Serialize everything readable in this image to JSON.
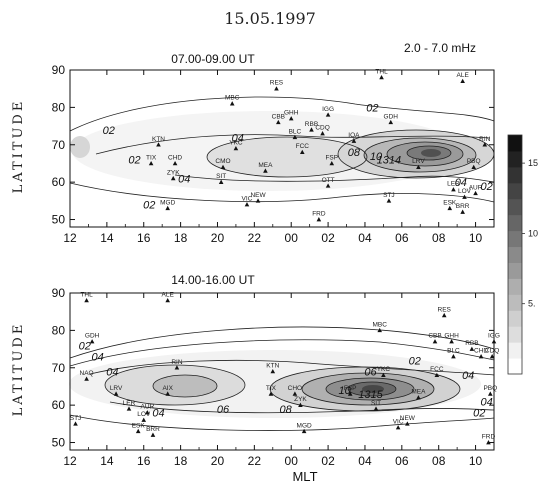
{
  "figure": {
    "date": "15.05.1997",
    "xlabel": "MLT",
    "ylabel": "LATITUDE",
    "band": "2.0 - 7.0 mHz"
  },
  "colorbar": {
    "ticks": [
      {
        "value": 15,
        "label": "15"
      },
      {
        "value": 10,
        "label": "10"
      },
      {
        "value": 5,
        "label": "5."
      }
    ],
    "range": [
      0,
      17
    ],
    "levels": [
      "#ffffff",
      "#f1f1f1",
      "#dddddd",
      "#cfcfcf",
      "#bcbcbc",
      "#aeaeae",
      "#9a9a9a",
      "#8a8a8a",
      "#777777",
      "#666666",
      "#545454",
      "#444444",
      "#333333",
      "#222222",
      "#111111"
    ]
  },
  "chart_data": [
    {
      "type": "contour",
      "title": "07.00-09.00 UT",
      "xlabel": "",
      "ylabel": "LATITUDE",
      "xticks": [
        "12",
        "14",
        "16",
        "18",
        "20",
        "22",
        "00",
        "02",
        "04",
        "06",
        "08",
        "10"
      ],
      "yticks": [
        "50",
        "60",
        "70",
        "80",
        "90"
      ],
      "xlim": [
        12,
        35
      ],
      "ylim": [
        48,
        90
      ],
      "stations": [
        {
          "name": "RES",
          "mlt": 23.2,
          "lat": 85
        },
        {
          "name": "THL",
          "mlt": 28.9,
          "lat": 88
        },
        {
          "name": "ALE",
          "mlt": 33.3,
          "lat": 87
        },
        {
          "name": "MBC",
          "mlt": 20.8,
          "lat": 81
        },
        {
          "name": "IGG",
          "mlt": 26.0,
          "lat": 78
        },
        {
          "name": "GHH",
          "mlt": 24.0,
          "lat": 77
        },
        {
          "name": "GDH",
          "mlt": 29.4,
          "lat": 76
        },
        {
          "name": "CBB",
          "mlt": 23.3,
          "lat": 76
        },
        {
          "name": "RBB",
          "mlt": 25.1,
          "lat": 74
        },
        {
          "name": "BLC",
          "mlt": 24.2,
          "lat": 72
        },
        {
          "name": "CDQ",
          "mlt": 25.7,
          "lat": 73
        },
        {
          "name": "IQA",
          "mlt": 27.4,
          "lat": 71
        },
        {
          "name": "RIN",
          "mlt": 34.5,
          "lat": 70
        },
        {
          "name": "KTN",
          "mlt": 16.8,
          "lat": 70
        },
        {
          "name": "YKC",
          "mlt": 21.0,
          "lat": 69
        },
        {
          "name": "FCC",
          "mlt": 24.6,
          "lat": 68
        },
        {
          "name": "FSP",
          "mlt": 26.2,
          "lat": 65
        },
        {
          "name": "LRV",
          "mlt": 30.9,
          "lat": 64
        },
        {
          "name": "TIX",
          "mlt": 16.4,
          "lat": 65
        },
        {
          "name": "CHD",
          "mlt": 17.7,
          "lat": 65
        },
        {
          "name": "CMO",
          "mlt": 20.3,
          "lat": 64
        },
        {
          "name": "MEA",
          "mlt": 22.6,
          "lat": 63
        },
        {
          "name": "PBQ",
          "mlt": 33.9,
          "lat": 64
        },
        {
          "name": "ZYK",
          "mlt": 17.6,
          "lat": 61
        },
        {
          "name": "SIT",
          "mlt": 20.2,
          "lat": 60
        },
        {
          "name": "OTT",
          "mlt": 26.0,
          "lat": 59
        },
        {
          "name": "LER",
          "mlt": 32.8,
          "lat": 58
        },
        {
          "name": "AUR",
          "mlt": 34.0,
          "lat": 57
        },
        {
          "name": "LOV",
          "mlt": 33.4,
          "lat": 56
        },
        {
          "name": "MGD",
          "mlt": 17.3,
          "lat": 53
        },
        {
          "name": "VIC",
          "mlt": 21.6,
          "lat": 54
        },
        {
          "name": "NEW",
          "mlt": 22.2,
          "lat": 55
        },
        {
          "name": "STJ",
          "mlt": 29.3,
          "lat": 55
        },
        {
          "name": "ESK",
          "mlt": 32.6,
          "lat": 53
        },
        {
          "name": "BRR",
          "mlt": 33.3,
          "lat": 52
        },
        {
          "name": "FRD",
          "mlt": 25.5,
          "lat": 50
        }
      ],
      "contour_labels": [
        {
          "text": "02",
          "mlt": 14.1,
          "lat": 74
        },
        {
          "text": "02",
          "mlt": 15.5,
          "lat": 66
        },
        {
          "text": "04",
          "mlt": 18.2,
          "lat": 61
        },
        {
          "text": "02",
          "mlt": 16.3,
          "lat": 54
        },
        {
          "text": "04",
          "mlt": 21.1,
          "lat": 72
        },
        {
          "text": "02",
          "mlt": 28.4,
          "lat": 80
        },
        {
          "text": "08",
          "mlt": 27.4,
          "lat": 68
        },
        {
          "text": "10",
          "mlt": 28.6,
          "lat": 67
        },
        {
          "text": "1314",
          "mlt": 29.3,
          "lat": 66
        },
        {
          "text": "04",
          "mlt": 33.2,
          "lat": 60
        },
        {
          "text": "02",
          "mlt": 34.6,
          "lat": 59
        }
      ]
    },
    {
      "type": "contour",
      "title": "14.00-16.00 UT",
      "xlabel": "MLT",
      "ylabel": "LATITUDE",
      "xticks": [
        "12",
        "14",
        "16",
        "18",
        "20",
        "22",
        "00",
        "02",
        "04",
        "06",
        "08",
        "10"
      ],
      "yticks": [
        "50",
        "60",
        "70",
        "80",
        "90"
      ],
      "xlim": [
        12,
        35
      ],
      "ylim": [
        48,
        90
      ],
      "stations": [
        {
          "name": "THL",
          "mlt": 12.9,
          "lat": 88
        },
        {
          "name": "ALE",
          "mlt": 17.3,
          "lat": 88
        },
        {
          "name": "RES",
          "mlt": 32.3,
          "lat": 84
        },
        {
          "name": "MBC",
          "mlt": 28.8,
          "lat": 80
        },
        {
          "name": "GDH",
          "mlt": 13.2,
          "lat": 77
        },
        {
          "name": "CBB",
          "mlt": 31.8,
          "lat": 77
        },
        {
          "name": "GHH",
          "mlt": 32.7,
          "lat": 77
        },
        {
          "name": "IGG",
          "mlt": 35.0,
          "lat": 77
        },
        {
          "name": "RBB",
          "mlt": 33.8,
          "lat": 75
        },
        {
          "name": "BLC",
          "mlt": 32.8,
          "lat": 73
        },
        {
          "name": "CHD",
          "mlt": 34.3,
          "lat": 73
        },
        {
          "name": "CDQ",
          "mlt": 34.9,
          "lat": 73
        },
        {
          "name": "RIN",
          "mlt": 17.8,
          "lat": 70
        },
        {
          "name": "KTN",
          "mlt": 23.0,
          "lat": 69
        },
        {
          "name": "YKC",
          "mlt": 29.0,
          "lat": 68
        },
        {
          "name": "FCC",
          "mlt": 31.9,
          "lat": 68
        },
        {
          "name": "NAQ",
          "mlt": 12.9,
          "lat": 67
        },
        {
          "name": "LRV",
          "mlt": 14.5,
          "lat": 63
        },
        {
          "name": "AIX",
          "mlt": 17.3,
          "lat": 63
        },
        {
          "name": "TIX",
          "mlt": 22.9,
          "lat": 63
        },
        {
          "name": "CHO",
          "mlt": 24.2,
          "lat": 63
        },
        {
          "name": "FSP",
          "mlt": 27.2,
          "lat": 63
        },
        {
          "name": "MEA",
          "mlt": 30.9,
          "lat": 62
        },
        {
          "name": "PBQ",
          "mlt": 34.8,
          "lat": 63
        },
        {
          "name": "ZYK",
          "mlt": 24.5,
          "lat": 60
        },
        {
          "name": "SIT",
          "mlt": 28.6,
          "lat": 59
        },
        {
          "name": "LER",
          "mlt": 15.2,
          "lat": 59
        },
        {
          "name": "AUR",
          "mlt": 16.2,
          "lat": 58
        },
        {
          "name": "LOV",
          "mlt": 16.0,
          "lat": 56
        },
        {
          "name": "STJ",
          "mlt": 12.3,
          "lat": 55
        },
        {
          "name": "ESK",
          "mlt": 15.7,
          "lat": 53
        },
        {
          "name": "BRR",
          "mlt": 16.5,
          "lat": 52
        },
        {
          "name": "MGD",
          "mlt": 24.7,
          "lat": 53
        },
        {
          "name": "VIC",
          "mlt": 29.8,
          "lat": 54
        },
        {
          "name": "NEW",
          "mlt": 30.3,
          "lat": 55
        },
        {
          "name": "FRD",
          "mlt": 34.7,
          "lat": 50
        }
      ],
      "contour_labels": [
        {
          "text": "04",
          "mlt": 13.5,
          "lat": 73
        },
        {
          "text": "04",
          "mlt": 14.3,
          "lat": 69
        },
        {
          "text": "02",
          "mlt": 12.8,
          "lat": 76
        },
        {
          "text": "04",
          "mlt": 16.8,
          "lat": 58
        },
        {
          "text": "06",
          "mlt": 20.3,
          "lat": 59
        },
        {
          "text": "08",
          "mlt": 23.7,
          "lat": 59
        },
        {
          "text": "10",
          "mlt": 26.9,
          "lat": 64
        },
        {
          "text": "1315",
          "mlt": 28.3,
          "lat": 63
        },
        {
          "text": "06",
          "mlt": 28.3,
          "lat": 69
        },
        {
          "text": "02",
          "mlt": 30.7,
          "lat": 72
        },
        {
          "text": "04",
          "mlt": 33.6,
          "lat": 68
        },
        {
          "text": "04",
          "mlt": 34.6,
          "lat": 61
        },
        {
          "text": "02",
          "mlt": 34.2,
          "lat": 58
        }
      ]
    }
  ]
}
